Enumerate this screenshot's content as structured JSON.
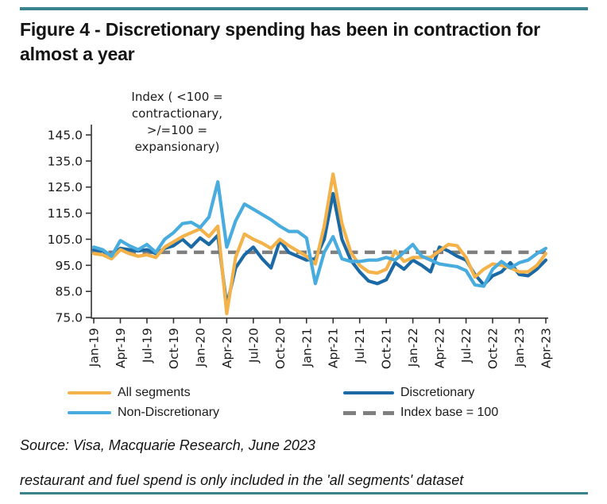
{
  "figure": {
    "title": "Figure 4 - Discretionary spending has been in contraction for almost a year",
    "source": "Source: Visa, Macquarie Research, June 2023",
    "footnote": "restaurant and fuel spend is only included in the 'all segments' dataset"
  },
  "colors": {
    "all_segments": "#F4B24A",
    "discretionary": "#1B6AA5",
    "non_discretionary": "#48ACDE",
    "index_base": "#7F7F7F",
    "rule_teal": "#3A838D",
    "axis": "#333333"
  },
  "legend": {
    "items": [
      {
        "label": "All segments",
        "color": "#F4B24A",
        "style": "solid"
      },
      {
        "label": "Non-Discretionary",
        "color": "#48ACDE",
        "style": "solid"
      },
      {
        "label": "Discretionary",
        "color": "#1B6AA5",
        "style": "solid"
      },
      {
        "label": "Index base = 100",
        "color": "#7F7F7F",
        "style": "dashed"
      }
    ]
  },
  "chart_data": {
    "type": "line",
    "title": "Figure 4 - Discretionary spending has been in contraction for almost a year",
    "annotation": "Index ( <100 =\ncontractionary,\n>/=100 =\nexpansionary)",
    "xlabel": "",
    "ylabel": "Index",
    "ylim": [
      75,
      145
    ],
    "y_ticks": [
      75,
      85,
      95,
      105,
      115,
      125,
      135,
      145
    ],
    "x_tick_every": 3,
    "x_tick_labels": [
      "Jan-19",
      "Apr-19",
      "Jul-19",
      "Oct-19",
      "Jan-20",
      "Apr-20",
      "Jul-20",
      "Oct-20",
      "Jan-21",
      "Apr-21",
      "Jul-21",
      "Oct-21",
      "Jan-22",
      "Apr-22",
      "Jul-22",
      "Oct-22",
      "Jan-23",
      "Apr-23"
    ],
    "x": [
      "Jan-19",
      "Feb-19",
      "Mar-19",
      "Apr-19",
      "May-19",
      "Jun-19",
      "Jul-19",
      "Aug-19",
      "Sep-19",
      "Oct-19",
      "Nov-19",
      "Dec-19",
      "Jan-20",
      "Feb-20",
      "Mar-20",
      "Apr-20",
      "May-20",
      "Jun-20",
      "Jul-20",
      "Aug-20",
      "Sep-20",
      "Oct-20",
      "Nov-20",
      "Dec-20",
      "Jan-21",
      "Feb-21",
      "Mar-21",
      "Apr-21",
      "May-21",
      "Jun-21",
      "Jul-21",
      "Aug-21",
      "Sep-21",
      "Oct-21",
      "Nov-21",
      "Dec-21",
      "Jan-22",
      "Feb-22",
      "Mar-22",
      "Apr-22",
      "May-22",
      "Jun-22",
      "Jul-22",
      "Aug-22",
      "Sep-22",
      "Oct-22",
      "Nov-22",
      "Dec-22",
      "Jan-23",
      "Feb-23",
      "Mar-23",
      "Apr-23"
    ],
    "series": [
      {
        "name": "All segments",
        "color": "#F4B24A",
        "values": [
          99.5,
          99,
          97.5,
          101,
          99.5,
          98.5,
          99,
          98,
          102,
          104,
          106,
          107.5,
          109,
          106,
          110,
          76.5,
          98,
          107,
          105,
          103.5,
          101.5,
          105,
          102.5,
          100.5,
          98.5,
          95.5,
          110,
          130,
          111,
          100,
          95,
          92.5,
          92,
          93.5,
          100.5,
          96.5,
          98,
          98,
          98,
          100.5,
          103,
          102.5,
          98,
          90.5,
          93.5,
          95.5,
          95,
          94,
          92.5,
          92.5,
          95,
          99.5
        ]
      },
      {
        "name": "Discretionary",
        "color": "#1B6AA5",
        "values": [
          101,
          100.5,
          98.5,
          101.5,
          101,
          100.5,
          101,
          99.5,
          101.5,
          102.5,
          105,
          102,
          105.5,
          103,
          106.5,
          79.5,
          94,
          99,
          102,
          97.5,
          94,
          104.5,
          100,
          98.5,
          97,
          97.5,
          105,
          122.5,
          105,
          97,
          92.5,
          89,
          88,
          89.5,
          96,
          93.5,
          97,
          95,
          92.5,
          102,
          100.5,
          98.5,
          97,
          91.5,
          87.5,
          91,
          92.5,
          96,
          91.5,
          91,
          93.5,
          97
        ]
      },
      {
        "name": "Non-Discretionary",
        "color": "#48ACDE",
        "values": [
          102,
          101,
          98.5,
          104.5,
          102.5,
          101,
          103,
          100,
          105,
          107.5,
          111,
          111.5,
          109.5,
          113.5,
          127,
          102,
          112,
          118.5,
          116.5,
          114.5,
          112.5,
          110,
          108,
          108,
          105.5,
          88,
          100,
          106,
          97.5,
          96.5,
          96.5,
          97,
          97,
          98,
          97,
          100,
          103,
          98.5,
          97,
          95.5,
          95,
          94.5,
          93,
          87.5,
          87,
          93.5,
          96.5,
          94,
          96,
          97,
          99.5,
          101.5
        ]
      }
    ],
    "reference_line": {
      "label": "Index base = 100",
      "value": 100,
      "color": "#7F7F7F",
      "style": "dashed"
    },
    "grid": false,
    "legend_position": "bottom"
  }
}
